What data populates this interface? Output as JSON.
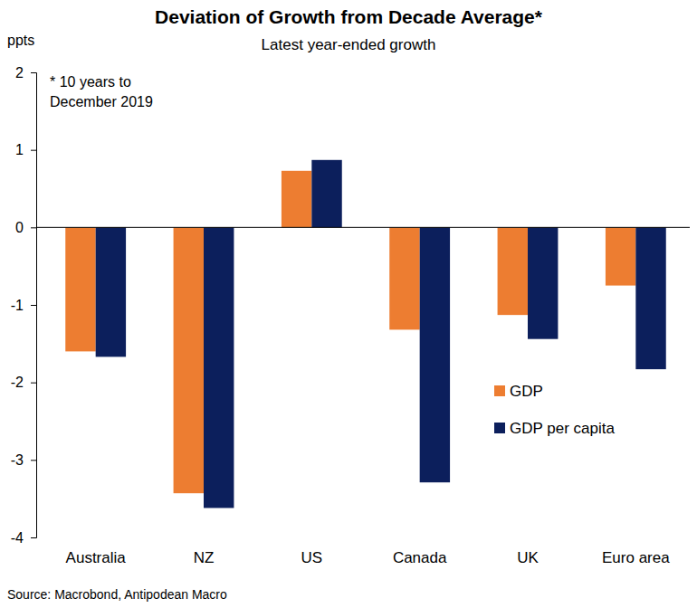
{
  "chart_data": {
    "type": "bar",
    "title": "Deviation of Growth from Decade Average*",
    "subtitle": "Latest year-ended growth",
    "y_label": "ppts",
    "annotation": [
      "* 10 years to",
      "December 2019"
    ],
    "source": "Source: Macrobond, Antipodean Macro",
    "categories": [
      "Australia",
      "NZ",
      "US",
      "Canada",
      "UK",
      "Euro area"
    ],
    "series": [
      {
        "name": "GDP",
        "color": "#ed7d31",
        "values": [
          -1.6,
          -3.43,
          0.73,
          -1.32,
          -1.13,
          -0.75
        ]
      },
      {
        "name": "GDP per capita",
        "color": "#0c1f5c",
        "values": [
          -1.67,
          -3.62,
          0.87,
          -3.29,
          -1.44,
          -1.83
        ]
      }
    ],
    "ylim": [
      -4,
      2
    ],
    "yticks": [
      -4,
      -3,
      -2,
      -1,
      0,
      1,
      2
    ],
    "grid": false,
    "legend": "right"
  }
}
